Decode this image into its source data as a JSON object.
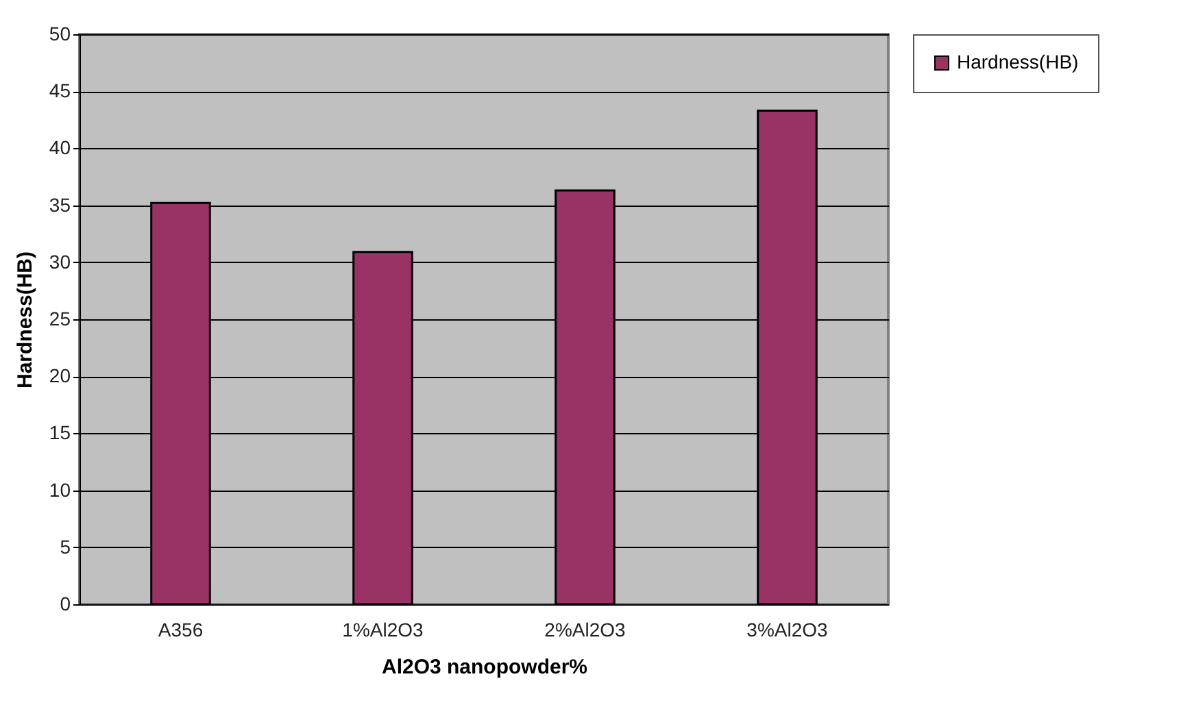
{
  "chart_data": {
    "type": "bar",
    "xlabel": "Al2O3 nanopowder%",
    "ylabel": "Hardness(HB)",
    "categories": [
      "A356",
      "1%Al2O3",
      "2%Al2O3",
      "3%Al2O3"
    ],
    "series": [
      {
        "name": "Hardness(HB)",
        "color": "#993366",
        "values": [
          35.2,
          30.9,
          36.3,
          43.3
        ]
      }
    ],
    "ylim": [
      0,
      50
    ],
    "yticks": [
      0,
      5,
      10,
      15,
      20,
      25,
      30,
      35,
      40,
      45,
      50
    ],
    "grid": "y",
    "legend": "right"
  }
}
